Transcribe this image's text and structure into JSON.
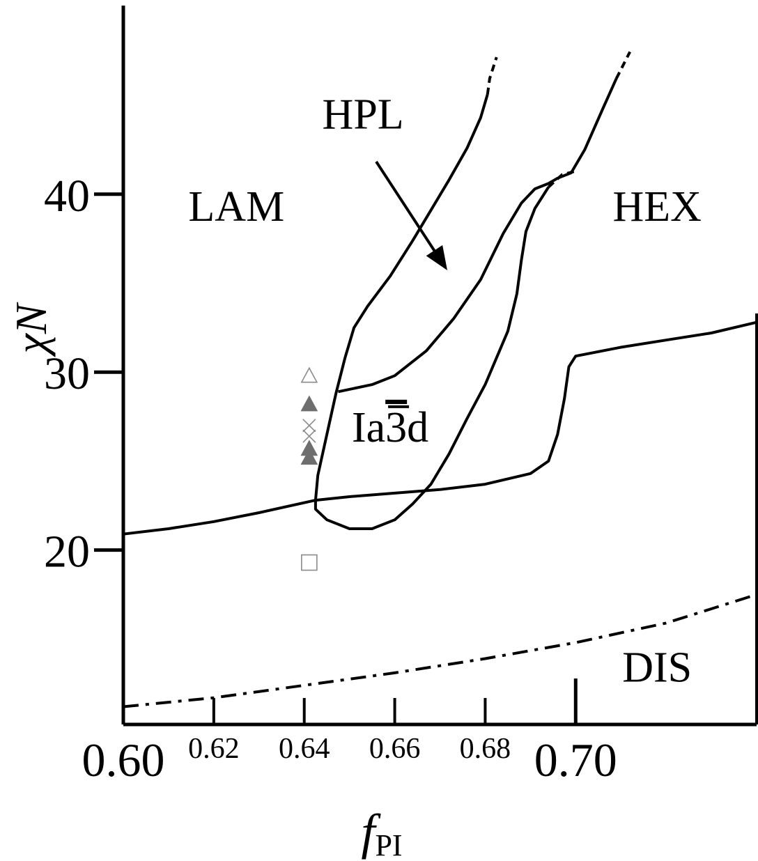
{
  "chart_data": {
    "type": "phase-diagram",
    "xlabel": "f",
    "xlabel_sub": "PI",
    "ylabel": "χN",
    "xlim": [
      0.6,
      0.74
    ],
    "ylim": [
      10.2,
      50.6
    ],
    "x_ticks_major": [
      {
        "value": 0.6,
        "label": "0.60"
      },
      {
        "value": 0.7,
        "label": "0.70"
      }
    ],
    "x_ticks_minor": [
      {
        "value": 0.62,
        "label": "0.62"
      },
      {
        "value": 0.64,
        "label": "0.64"
      },
      {
        "value": 0.66,
        "label": "0.66"
      },
      {
        "value": 0.68,
        "label": "0.68"
      }
    ],
    "y_ticks": [
      {
        "value": 20,
        "label": "20"
      },
      {
        "value": 30,
        "label": "30"
      },
      {
        "value": 40,
        "label": "40"
      }
    ],
    "region_labels": [
      {
        "text": "LAM",
        "x": 0.625,
        "y": 38.5
      },
      {
        "text": "HEX",
        "x": 0.718,
        "y": 38.5
      },
      {
        "text": "HPL",
        "x": 0.653,
        "y": 43.7
      },
      {
        "text": "DIS",
        "x": 0.718,
        "y": 12.6
      },
      {
        "text": "Ia3d",
        "x": 0.659,
        "y": 26.1
      }
    ],
    "series": [
      {
        "style": "solid",
        "points": [
          [
            0.6,
            20.9
          ],
          [
            0.61,
            21.2
          ],
          [
            0.62,
            21.6
          ],
          [
            0.63,
            22.1
          ],
          [
            0.6425,
            22.8
          ],
          [
            0.65,
            23.0
          ],
          [
            0.66,
            23.2
          ],
          [
            0.67,
            23.4
          ],
          [
            0.68,
            23.7
          ],
          [
            0.69,
            24.3
          ],
          [
            0.694,
            25.0
          ],
          [
            0.696,
            26.5
          ],
          [
            0.6975,
            28.5
          ],
          [
            0.6985,
            30.3
          ],
          [
            0.7,
            30.9
          ],
          [
            0.71,
            31.4
          ],
          [
            0.72,
            31.8
          ],
          [
            0.73,
            32.2
          ],
          [
            0.74,
            32.8
          ]
        ]
      },
      {
        "style": "solid",
        "points": [
          [
            0.6425,
            22.8
          ],
          [
            0.6425,
            22.3
          ],
          [
            0.645,
            21.7
          ],
          [
            0.65,
            21.2
          ],
          [
            0.655,
            21.2
          ],
          [
            0.66,
            21.7
          ],
          [
            0.664,
            22.6
          ],
          [
            0.668,
            23.7
          ],
          [
            0.672,
            25.4
          ],
          [
            0.676,
            27.4
          ],
          [
            0.68,
            29.3
          ],
          [
            0.685,
            32.3
          ],
          [
            0.687,
            34.4
          ],
          [
            0.688,
            36.3
          ],
          [
            0.689,
            37.9
          ],
          [
            0.691,
            39.2
          ],
          [
            0.694,
            40.4
          ]
        ]
      },
      {
        "style": "dashed",
        "points": [
          [
            0.694,
            40.4
          ],
          [
            0.697,
            41.1
          ],
          [
            0.7,
            41.3
          ]
        ]
      },
      {
        "style": "solid",
        "points": [
          [
            0.6425,
            22.8
          ],
          [
            0.643,
            24.2
          ],
          [
            0.645,
            26.5
          ],
          [
            0.647,
            28.8
          ],
          [
            0.649,
            30.8
          ],
          [
            0.651,
            32.5
          ],
          [
            0.654,
            33.7
          ],
          [
            0.659,
            35.4
          ],
          [
            0.664,
            37.4
          ],
          [
            0.668,
            39.1
          ],
          [
            0.672,
            40.8
          ],
          [
            0.676,
            42.6
          ],
          [
            0.679,
            44.3
          ],
          [
            0.6805,
            45.6
          ]
        ]
      },
      {
        "style": "dashed",
        "points": [
          [
            0.6805,
            45.6
          ],
          [
            0.681,
            46.5
          ],
          [
            0.6825,
            47.7
          ]
        ]
      },
      {
        "style": "solid",
        "points": [
          [
            0.6475,
            28.9
          ],
          [
            0.655,
            29.3
          ],
          [
            0.66,
            29.8
          ],
          [
            0.667,
            31.2
          ],
          [
            0.673,
            33.0
          ],
          [
            0.679,
            35.2
          ],
          [
            0.684,
            37.8
          ],
          [
            0.688,
            39.5
          ],
          [
            0.691,
            40.3
          ],
          [
            0.694,
            40.6
          ],
          [
            0.696,
            40.9
          ],
          [
            0.699,
            41.2
          ],
          [
            0.702,
            42.5
          ],
          [
            0.706,
            44.8
          ],
          [
            0.709,
            46.5
          ]
        ]
      },
      {
        "style": "dashed",
        "points": [
          [
            0.709,
            46.5
          ],
          [
            0.711,
            47.5
          ],
          [
            0.712,
            48.0
          ]
        ]
      },
      {
        "style": "dashdot",
        "points": [
          [
            0.6,
            11.2
          ],
          [
            0.62,
            11.7
          ],
          [
            0.64,
            12.4
          ],
          [
            0.66,
            13.1
          ],
          [
            0.68,
            13.9
          ],
          [
            0.7,
            14.8
          ],
          [
            0.72,
            15.9
          ],
          [
            0.74,
            17.5
          ]
        ]
      }
    ],
    "markers": [
      {
        "shape": "triangle-open",
        "x": 0.6411,
        "y": 29.8
      },
      {
        "shape": "triangle-filled",
        "x": 0.6411,
        "y": 28.2
      },
      {
        "shape": "cross",
        "x": 0.6411,
        "y": 27.0
      },
      {
        "shape": "cross",
        "x": 0.6411,
        "y": 26.4
      },
      {
        "shape": "triangle-filled",
        "x": 0.6411,
        "y": 25.7
      },
      {
        "shape": "triangle-filled",
        "x": 0.6411,
        "y": 25.2
      },
      {
        "shape": "square-open",
        "x": 0.6411,
        "y": 19.3
      }
    ],
    "colors": {
      "line": "#000000",
      "marker_filled": "#6e6e6e",
      "marker_open": "#8a8a8a"
    }
  }
}
